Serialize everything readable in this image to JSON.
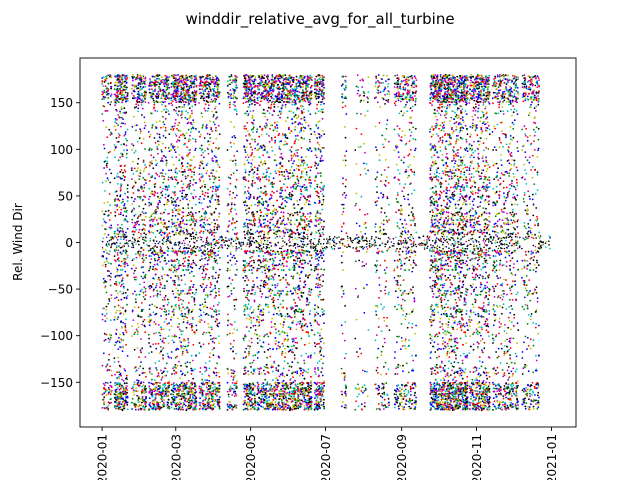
{
  "chart_data": {
    "type": "scatter",
    "title": "winddir_relative_avg_for_all_turbine",
    "xlabel": "",
    "ylabel": "Rel. Wind Dir",
    "x_tick_labels": [
      "2020-01",
      "2020-03",
      "2020-05",
      "2020-07",
      "2020-09",
      "2020-11",
      "2021-01"
    ],
    "x_tick_dates": [
      "2020-01-01",
      "2020-03-01",
      "2020-05-01",
      "2020-07-01",
      "2020-09-01",
      "2020-11-01",
      "2021-01-01"
    ],
    "y_ticks": [
      -150,
      -100,
      -50,
      0,
      50,
      100,
      150
    ],
    "xlim": [
      "2019-12-14",
      "2021-01-21"
    ],
    "ylim": [
      -198,
      198
    ],
    "grid": false,
    "legend": "none",
    "marker": "dot",
    "band": {
      "baseline": 0,
      "spread": 7
    },
    "active_periods": [
      {
        "from": "2020-01-01",
        "to": "2020-01-09",
        "density": 3
      },
      {
        "from": "2020-01-11",
        "to": "2020-01-22",
        "density": 6
      },
      {
        "from": "2020-01-25",
        "to": "2020-02-06",
        "density": 4
      },
      {
        "from": "2020-02-08",
        "to": "2020-02-25",
        "density": 5
      },
      {
        "from": "2020-02-26",
        "to": "2020-03-18",
        "density": 6
      },
      {
        "from": "2020-03-20",
        "to": "2020-04-06",
        "density": 5
      },
      {
        "from": "2020-04-12",
        "to": "2020-04-20",
        "density": 3
      },
      {
        "from": "2020-04-25",
        "to": "2020-05-05",
        "density": 6
      },
      {
        "from": "2020-05-06",
        "to": "2020-06-20",
        "density": 8
      },
      {
        "from": "2020-06-22",
        "to": "2020-06-30",
        "density": 6
      },
      {
        "from": "2020-07-14",
        "to": "2020-07-18",
        "density": 2
      },
      {
        "from": "2020-07-25",
        "to": "2020-08-05",
        "density": 1
      },
      {
        "from": "2020-08-10",
        "to": "2020-08-22",
        "density": 2
      },
      {
        "from": "2020-08-26",
        "to": "2020-09-13",
        "density": 3
      },
      {
        "from": "2020-09-24",
        "to": "2020-10-25",
        "density": 8
      },
      {
        "from": "2020-10-26",
        "to": "2020-11-12",
        "density": 6
      },
      {
        "from": "2020-11-14",
        "to": "2020-12-05",
        "density": 4
      },
      {
        "from": "2020-12-08",
        "to": "2020-12-22",
        "density": 3
      }
    ],
    "colors": [
      "#0000ff",
      "#008000",
      "#ff0000",
      "#00bfbf",
      "#bf00bf",
      "#bfbf00",
      "#000000"
    ]
  }
}
